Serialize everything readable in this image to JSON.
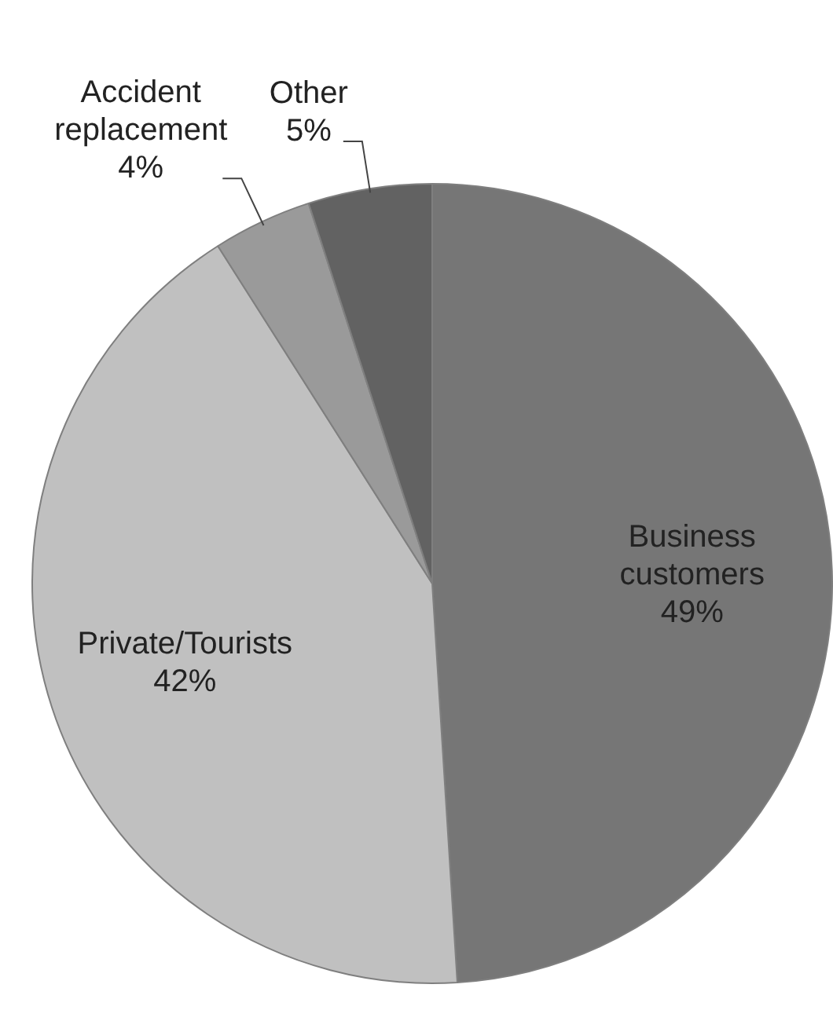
{
  "chart_data": {
    "type": "pie",
    "categories": [
      "Business customers",
      "Private/Tourists",
      "Accident replacement",
      "Other"
    ],
    "values": [
      49,
      42,
      4,
      5
    ],
    "value_labels": [
      "49%",
      "42%",
      "4%",
      "5%"
    ],
    "colors": [
      "#767676",
      "#c0c0c0",
      "#9a9a9a",
      "#626262"
    ],
    "legend": false
  }
}
